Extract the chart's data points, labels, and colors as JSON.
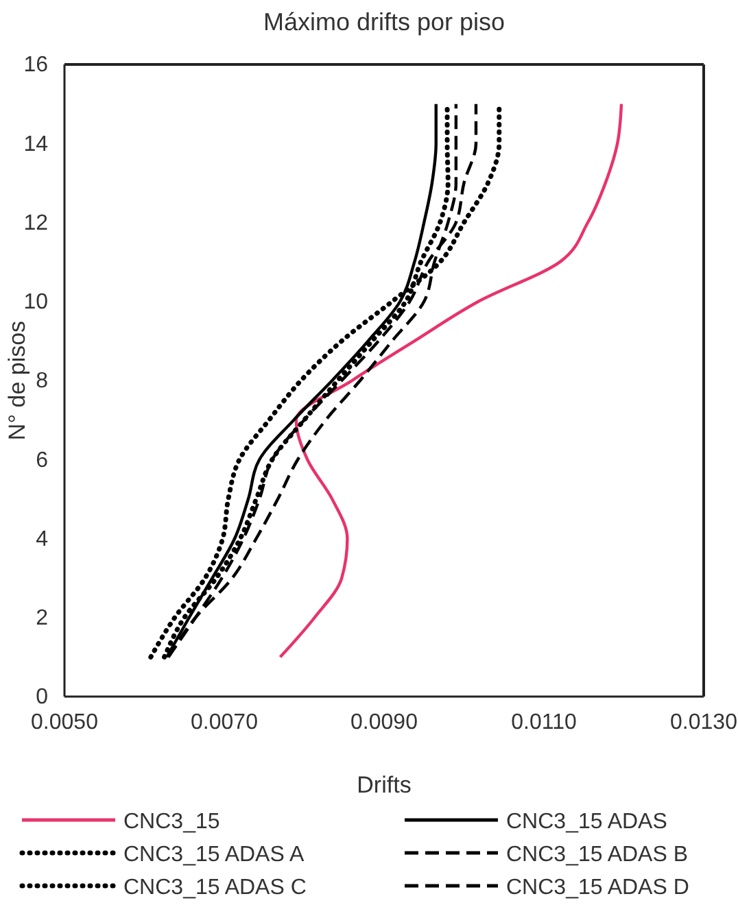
{
  "chart_data": {
    "type": "line",
    "title": "Máximo drifts por piso",
    "xlabel": "Drifts",
    "ylabel": "N° de pisos",
    "xlim": [
      0.005,
      0.013
    ],
    "xticks": [
      {
        "value": 0.005,
        "label": "0.0050"
      },
      {
        "value": 0.007,
        "label": "0.0070"
      },
      {
        "value": 0.009,
        "label": "0.0090"
      },
      {
        "value": 0.011,
        "label": "0.0110"
      },
      {
        "value": 0.013,
        "label": "0.0130"
      }
    ],
    "ylim": [
      0,
      16
    ],
    "yticks": [
      0,
      2,
      4,
      6,
      8,
      10,
      12,
      14,
      16
    ],
    "grid": false,
    "legend": "bottom",
    "marker": "none",
    "series": [
      {
        "name": "CNC3_15",
        "color": "#e8336b",
        "line_style": "solid",
        "x": [
          0.0077,
          0.00813,
          0.00847,
          0.00854,
          0.00835,
          0.00804,
          0.0079,
          0.0086,
          0.00938,
          0.01018,
          0.0112,
          0.01155,
          0.01177,
          0.01192,
          0.01197
        ],
        "values": [
          1,
          2,
          3,
          4,
          5,
          6,
          7,
          8,
          9,
          10,
          11,
          12,
          13,
          14,
          15
        ]
      },
      {
        "name": "CNC3_15 ADAS",
        "color": "#000000",
        "line_style": "solid",
        "x": [
          0.00628,
          0.00656,
          0.00685,
          0.00713,
          0.0073,
          0.00744,
          0.00787,
          0.00835,
          0.0088,
          0.0092,
          0.00938,
          0.0095,
          0.0096,
          0.00965,
          0.00965
        ],
        "values": [
          1,
          2,
          3,
          4,
          5,
          6,
          7,
          8,
          9,
          10,
          11,
          12,
          13,
          14,
          15
        ]
      },
      {
        "name": "CNC3_15 ADAS A",
        "color": "#000000",
        "line_style": "dotted",
        "x": [
          0.00608,
          0.00638,
          0.00676,
          0.00698,
          0.00705,
          0.00719,
          0.00756,
          0.00796,
          0.00847,
          0.0091,
          0.0097,
          0.01,
          0.0103,
          0.01044,
          0.01044
        ],
        "values": [
          1,
          2,
          3,
          4,
          5,
          6,
          7,
          8,
          9,
          10,
          11,
          12,
          13,
          14,
          15
        ]
      },
      {
        "name": "CNC3_15 ADAS B",
        "color": "#000000",
        "line_style": "dashed",
        "x": [
          0.0063,
          0.00664,
          0.00697,
          0.00724,
          0.00744,
          0.0076,
          0.008,
          0.00847,
          0.00893,
          0.00932,
          0.00955,
          0.0099,
          0.01,
          0.01015,
          0.01015
        ],
        "values": [
          1,
          2,
          3,
          4,
          5,
          6,
          7,
          8,
          9,
          10,
          11,
          12,
          13,
          14,
          15
        ]
      },
      {
        "name": "CNC3_15 ADAS C",
        "color": "#000000",
        "line_style": "dotted",
        "x": [
          0.00625,
          0.0065,
          0.0069,
          0.0072,
          0.0074,
          0.0076,
          0.008,
          0.00842,
          0.00885,
          0.00927,
          0.00946,
          0.0097,
          0.0098,
          0.00979,
          0.00979
        ],
        "values": [
          1,
          2,
          3,
          4,
          5,
          6,
          7,
          8,
          9,
          10,
          11,
          12,
          13,
          14,
          15
        ]
      },
      {
        "name": "CNC3_15 ADAS D",
        "color": "#000000",
        "line_style": "dashed",
        "x": [
          0.0063,
          0.00664,
          0.0071,
          0.0074,
          0.00767,
          0.00792,
          0.00827,
          0.0087,
          0.0091,
          0.0095,
          0.00963,
          0.0098,
          0.0099,
          0.0099,
          0.0099
        ],
        "values": [
          1,
          2,
          3,
          4,
          5,
          6,
          7,
          8,
          9,
          10,
          11,
          12,
          13,
          14,
          15
        ]
      }
    ]
  }
}
